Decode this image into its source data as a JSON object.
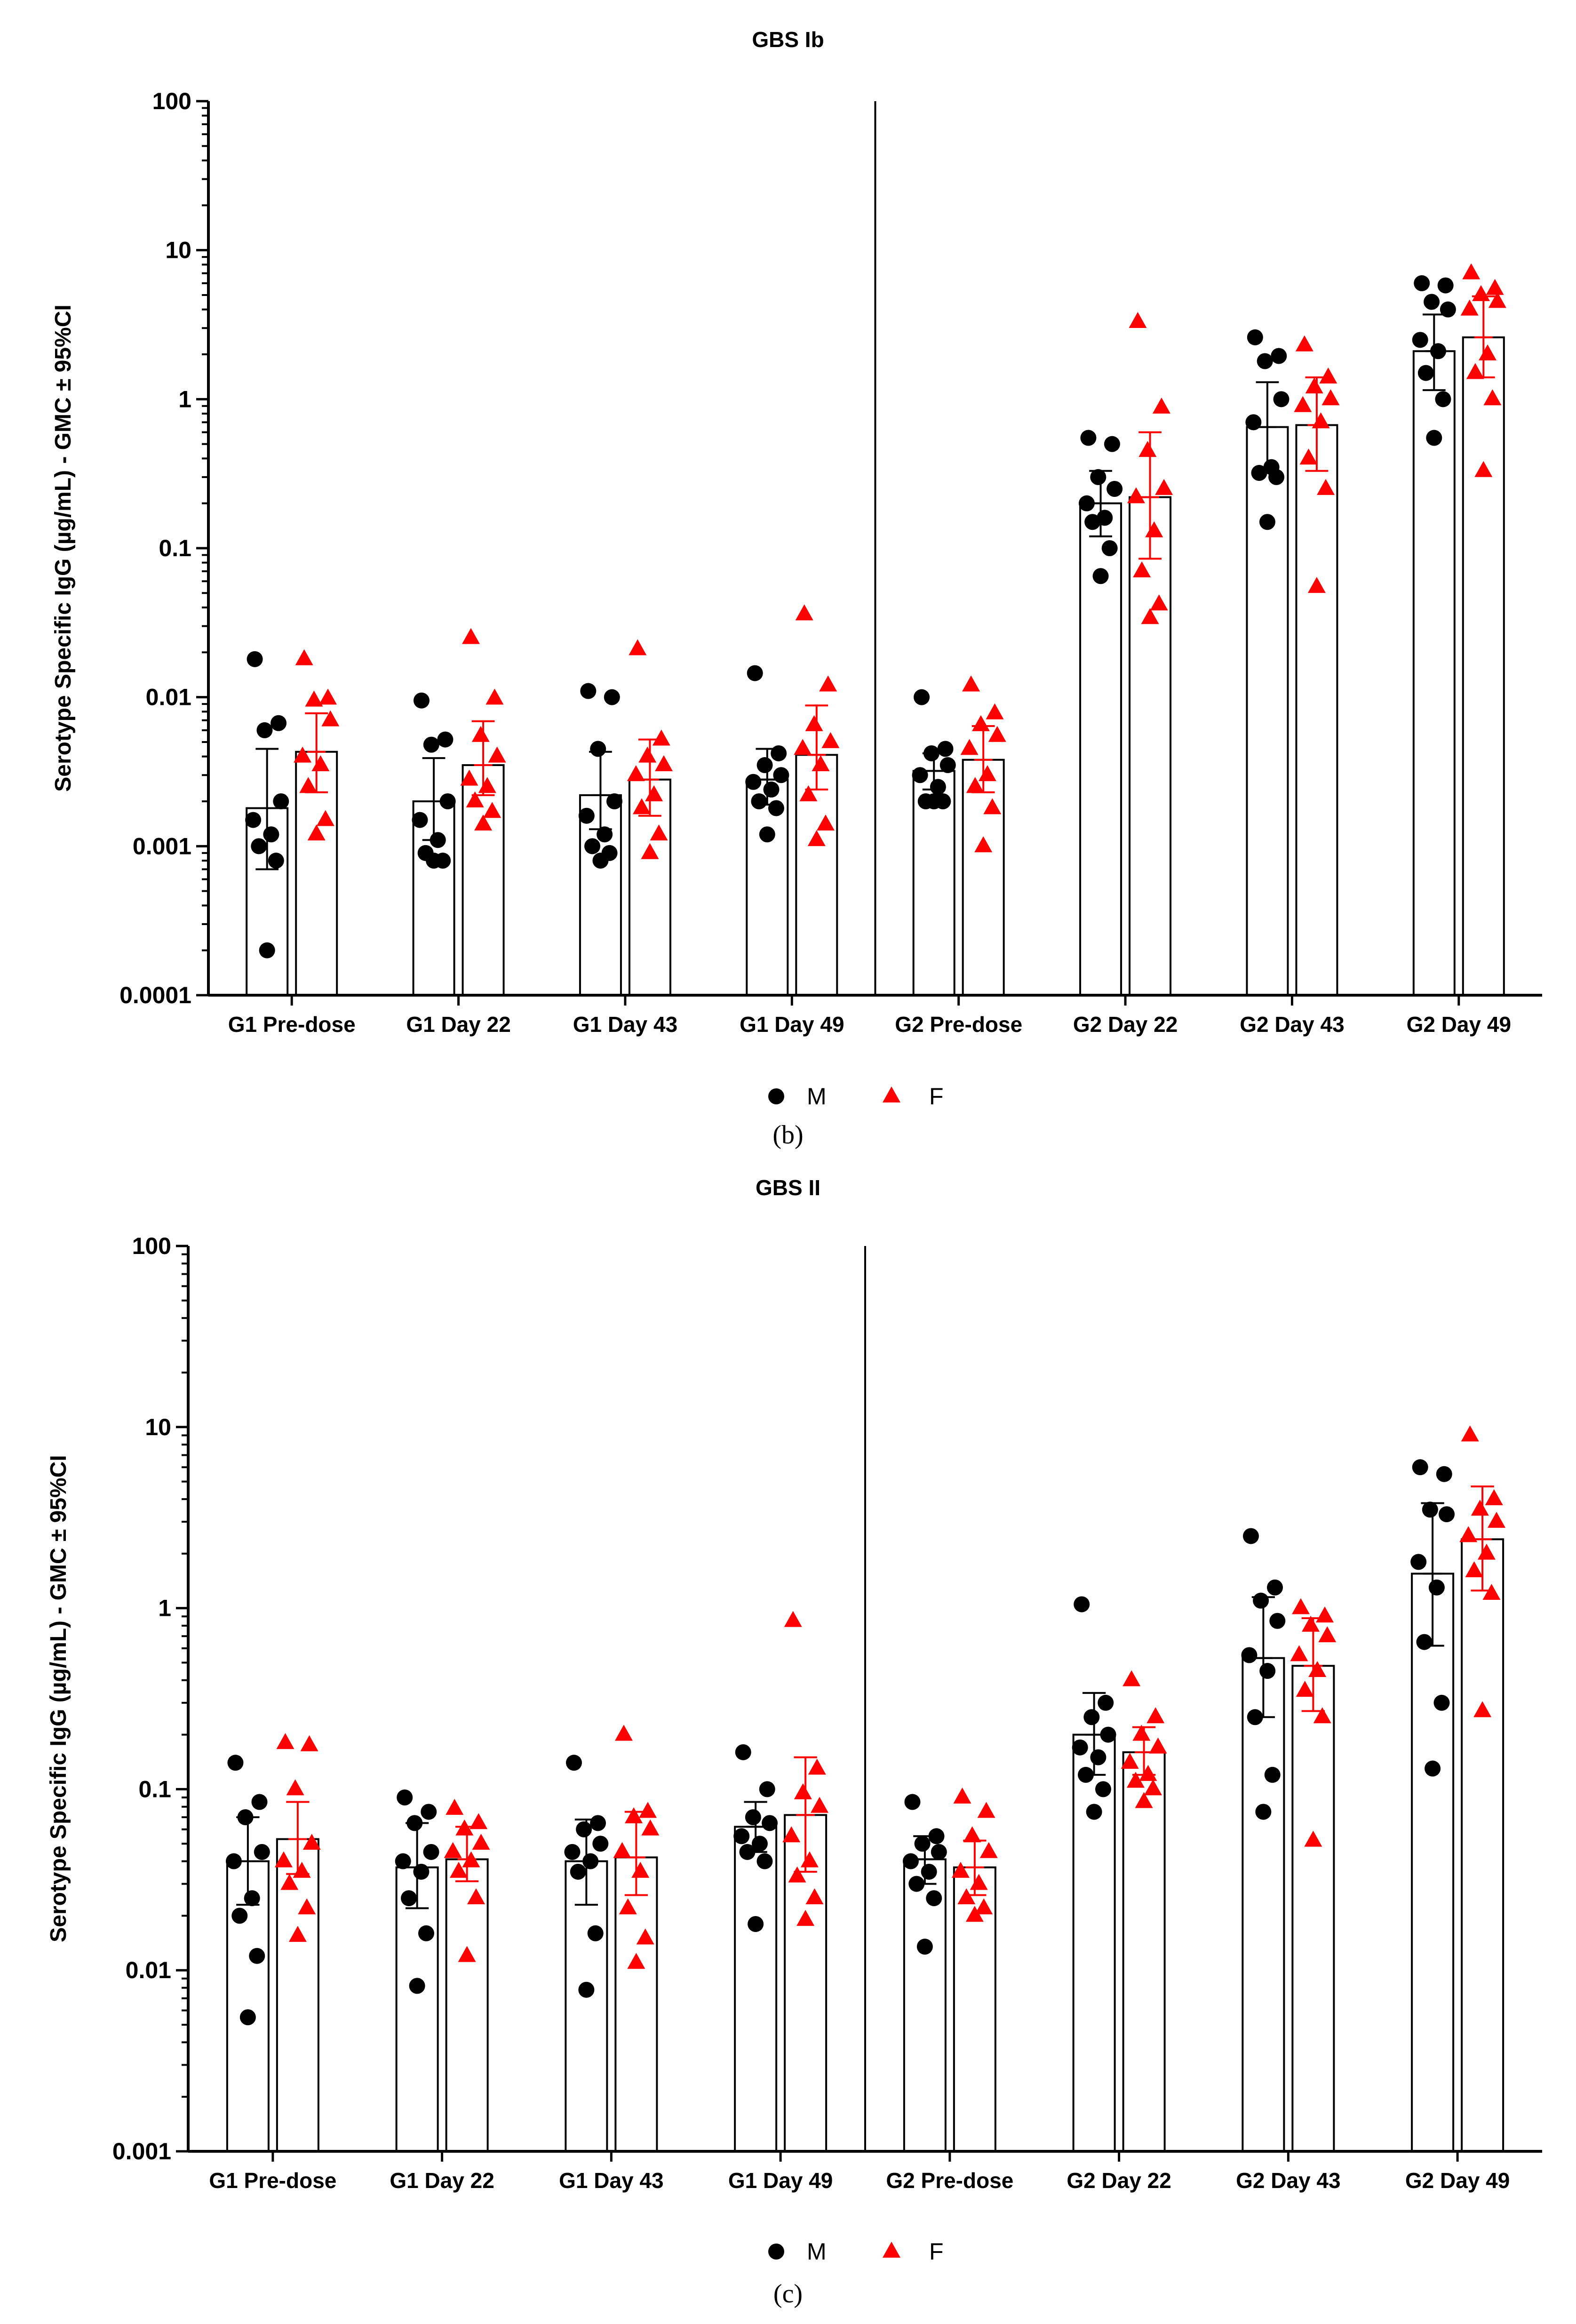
{
  "colors": {
    "male": "#000000",
    "female": "#ff0000",
    "bar_fill": "#ffffff",
    "axis": "#000000",
    "background": "#ffffff"
  },
  "legend": {
    "male_label": "M",
    "female_label": "F"
  },
  "chart_data": [
    {
      "type": "bar",
      "scale": "log",
      "panel_label": "(b)",
      "title": "GBS Ib",
      "xlabel": "",
      "ylabel": "Serotype Specific IgG (µg/mL) - GMC ± 95%CI",
      "ylim": [
        0.0001,
        100
      ],
      "y_ticks": [
        0.0001,
        0.001,
        0.01,
        0.1,
        1,
        10,
        100
      ],
      "y_tick_labels": [
        "0.0001",
        "0.001",
        "0.01",
        "0.1",
        "1",
        "10",
        "100"
      ],
      "separator_after_category": 4,
      "categories": [
        "G1 Pre-dose",
        "G1 Day 22",
        "G1 Day 43",
        "G1 Day 49",
        "G2 Pre-dose",
        "G2 Day 22",
        "G2 Day 43",
        "G2 Day 49"
      ],
      "series": [
        {
          "name": "M",
          "gmc": [
            0.0018,
            0.002,
            0.0022,
            0.0028,
            0.0032,
            0.2,
            0.65,
            2.1
          ],
          "ci_low": [
            0.0007,
            0.0011,
            0.0013,
            0.0019,
            0.0024,
            0.12,
            0.32,
            1.15
          ],
          "ci_high": [
            0.0045,
            0.0039,
            0.0043,
            0.0045,
            0.0042,
            0.33,
            1.3,
            3.7
          ],
          "points": [
            [
              0.018,
              0.0067,
              0.006,
              0.002,
              0.0015,
              0.0012,
              0.001,
              0.0008,
              0.0002
            ],
            [
              0.0095,
              0.0052,
              0.0048,
              0.002,
              0.0015,
              0.0011,
              0.0009,
              0.0008,
              0.0008
            ],
            [
              0.011,
              0.01,
              0.0045,
              0.002,
              0.0016,
              0.0012,
              0.001,
              0.0009,
              0.0008
            ],
            [
              0.0145,
              0.0042,
              0.0035,
              0.003,
              0.0027,
              0.0024,
              0.002,
              0.0018,
              0.0012
            ],
            [
              0.01,
              0.0045,
              0.0042,
              0.0035,
              0.003,
              0.0025,
              0.002,
              0.002,
              0.002
            ],
            [
              0.55,
              0.5,
              0.3,
              0.25,
              0.2,
              0.16,
              0.15,
              0.1,
              0.065
            ],
            [
              2.6,
              1.95,
              1.8,
              1.0,
              0.7,
              0.35,
              0.32,
              0.3,
              0.15
            ],
            [
              6.0,
              5.8,
              4.5,
              4.0,
              2.5,
              2.1,
              1.5,
              1.0,
              0.55
            ]
          ]
        },
        {
          "name": "F",
          "gmc": [
            0.0043,
            0.0035,
            0.0028,
            0.0041,
            0.0038,
            0.22,
            0.67,
            2.6
          ],
          "ci_low": [
            0.0023,
            0.0022,
            0.0016,
            0.0024,
            0.0023,
            0.085,
            0.33,
            1.4
          ],
          "ci_high": [
            0.0078,
            0.0069,
            0.0052,
            0.0088,
            0.0064,
            0.6,
            1.4,
            4.9
          ],
          "points": [
            [
              0.018,
              0.0098,
              0.0095,
              0.007,
              0.004,
              0.0035,
              0.0025,
              0.0015,
              0.0012
            ],
            [
              0.025,
              0.0098,
              0.0055,
              0.004,
              0.0028,
              0.0025,
              0.002,
              0.0017,
              0.0014
            ],
            [
              0.021,
              0.0052,
              0.004,
              0.0035,
              0.003,
              0.0022,
              0.0018,
              0.0012,
              0.0009
            ],
            [
              0.036,
              0.012,
              0.0065,
              0.005,
              0.0045,
              0.0035,
              0.0022,
              0.0014,
              0.0011
            ],
            [
              0.012,
              0.0078,
              0.0065,
              0.0055,
              0.0045,
              0.003,
              0.0025,
              0.0018,
              0.001
            ],
            [
              3.3,
              0.88,
              0.45,
              0.25,
              0.22,
              0.13,
              0.07,
              0.042,
              0.034
            ],
            [
              2.3,
              1.4,
              1.2,
              1.0,
              0.9,
              0.7,
              0.4,
              0.25,
              0.055
            ],
            [
              7.0,
              5.5,
              5.0,
              4.5,
              4.0,
              2.0,
              1.5,
              1.0,
              0.33
            ]
          ]
        }
      ]
    },
    {
      "type": "bar",
      "scale": "log",
      "panel_label": "(c)",
      "title": "GBS II",
      "xlabel": "",
      "ylabel": "Serotype Specific IgG (µg/mL) - GMC ± 95%CI",
      "ylim": [
        0.001,
        100
      ],
      "y_ticks": [
        0.001,
        0.01,
        0.1,
        1,
        10,
        100
      ],
      "y_tick_labels": [
        "0.001",
        "0.01",
        "0.1",
        "1",
        "10",
        "100"
      ],
      "separator_after_category": 4,
      "categories": [
        "G1 Pre-dose",
        "G1 Day 22",
        "G1 Day 43",
        "G1 Day 49",
        "G2 Pre-dose",
        "G2 Day 22",
        "G2 Day 43",
        "G2 Day 49"
      ],
      "series": [
        {
          "name": "M",
          "gmc": [
            0.04,
            0.037,
            0.04,
            0.062,
            0.041,
            0.2,
            0.53,
            1.55
          ],
          "ci_low": [
            0.023,
            0.022,
            0.023,
            0.045,
            0.03,
            0.12,
            0.25,
            0.62
          ],
          "ci_high": [
            0.07,
            0.065,
            0.068,
            0.085,
            0.055,
            0.34,
            1.15,
            3.8
          ],
          "points": [
            [
              0.14,
              0.085,
              0.07,
              0.045,
              0.04,
              0.025,
              0.02,
              0.012,
              0.0055
            ],
            [
              0.09,
              0.075,
              0.065,
              0.045,
              0.04,
              0.035,
              0.025,
              0.016,
              0.0082
            ],
            [
              0.14,
              0.065,
              0.06,
              0.05,
              0.045,
              0.04,
              0.035,
              0.016,
              0.0078
            ],
            [
              0.16,
              0.1,
              0.07,
              0.065,
              0.055,
              0.05,
              0.045,
              0.04,
              0.018
            ],
            [
              0.085,
              0.055,
              0.05,
              0.045,
              0.04,
              0.035,
              0.03,
              0.025,
              0.0135
            ],
            [
              1.05,
              0.3,
              0.25,
              0.2,
              0.17,
              0.15,
              0.12,
              0.1,
              0.075
            ],
            [
              2.5,
              1.3,
              1.1,
              0.85,
              0.55,
              0.45,
              0.25,
              0.12,
              0.075
            ],
            [
              6.0,
              5.5,
              3.5,
              3.3,
              1.8,
              1.3,
              0.65,
              0.3,
              0.13
            ]
          ]
        },
        {
          "name": "F",
          "gmc": [
            0.053,
            0.041,
            0.042,
            0.072,
            0.037,
            0.16,
            0.48,
            2.4
          ],
          "ci_low": [
            0.034,
            0.031,
            0.026,
            0.035,
            0.026,
            0.12,
            0.27,
            1.25
          ],
          "ci_high": [
            0.085,
            0.062,
            0.075,
            0.15,
            0.052,
            0.22,
            0.88,
            4.7
          ],
          "points": [
            [
              0.18,
              0.175,
              0.1,
              0.05,
              0.04,
              0.035,
              0.03,
              0.022,
              0.0155
            ],
            [
              0.078,
              0.065,
              0.06,
              0.05,
              0.045,
              0.04,
              0.035,
              0.025,
              0.012
            ],
            [
              0.2,
              0.075,
              0.07,
              0.06,
              0.045,
              0.035,
              0.022,
              0.015,
              0.011
            ],
            [
              0.85,
              0.13,
              0.095,
              0.08,
              0.055,
              0.04,
              0.033,
              0.025,
              0.019
            ],
            [
              0.09,
              0.075,
              0.055,
              0.045,
              0.035,
              0.03,
              0.025,
              0.022,
              0.02
            ],
            [
              0.4,
              0.25,
              0.2,
              0.17,
              0.14,
              0.12,
              0.11,
              0.1,
              0.085
            ],
            [
              1.0,
              0.9,
              0.8,
              0.7,
              0.55,
              0.45,
              0.35,
              0.25,
              0.052
            ],
            [
              9.0,
              4.0,
              3.5,
              3.0,
              2.5,
              2.0,
              1.6,
              1.2,
              0.27
            ]
          ]
        }
      ]
    }
  ]
}
